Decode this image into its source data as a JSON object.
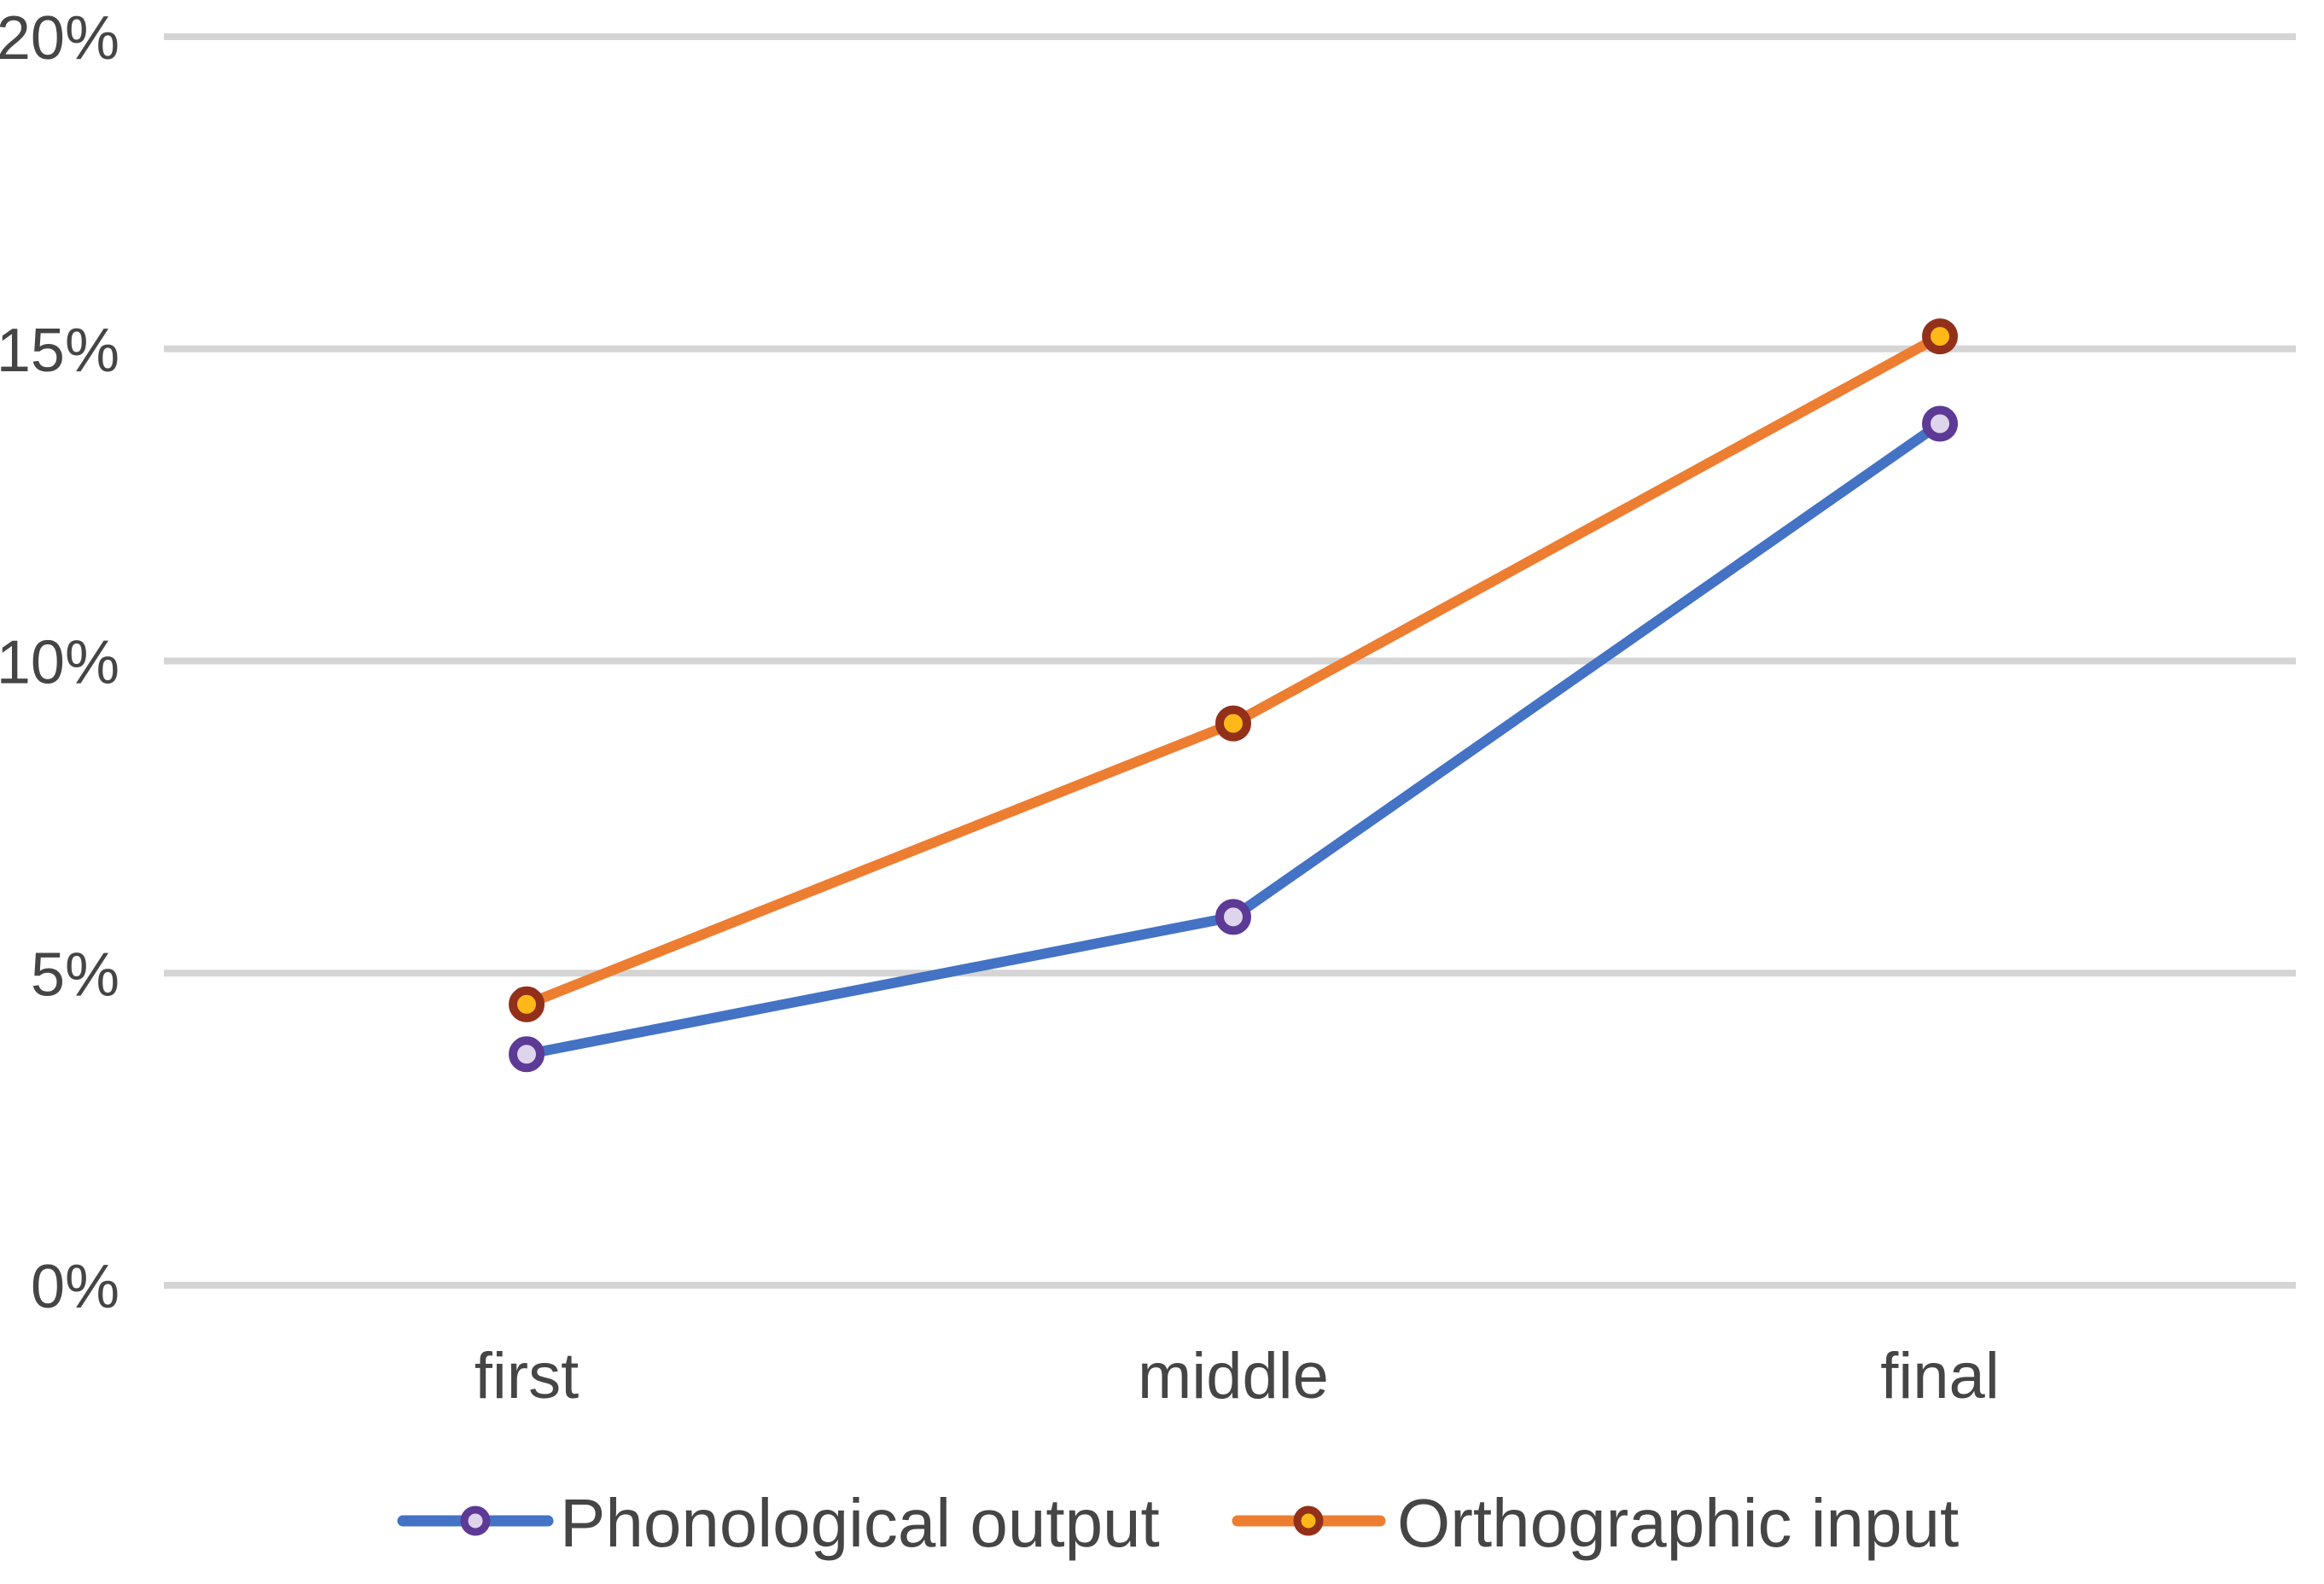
{
  "chart_data": {
    "type": "line",
    "title": "",
    "xlabel": "",
    "ylabel": "",
    "categories": [
      "first",
      "middle",
      "final"
    ],
    "series": [
      {
        "name": "Phonological output",
        "values": [
          3.7,
          5.9,
          13.8
        ],
        "line_color": "#4472C4",
        "marker_border": "#5C3A96",
        "marker_fill": "#DED4EC"
      },
      {
        "name": "Orthographic input",
        "values": [
          4.5,
          9.0,
          15.2
        ],
        "line_color": "#ED7D31",
        "marker_border": "#93301A",
        "marker_fill": "#FFB818"
      }
    ],
    "y_ticks": [
      {
        "value": 0,
        "label": "0%"
      },
      {
        "value": 5,
        "label": "5%"
      },
      {
        "value": 10,
        "label": "10%"
      },
      {
        "value": 15,
        "label": "15%"
      },
      {
        "value": 20,
        "label": "20%"
      }
    ],
    "ylim": [
      0,
      20
    ],
    "grid": true,
    "legend_position": "bottom",
    "colors": {
      "gridline": "#D5D5D5",
      "axis_text": "#454545",
      "background": "#FFFFFF"
    }
  }
}
